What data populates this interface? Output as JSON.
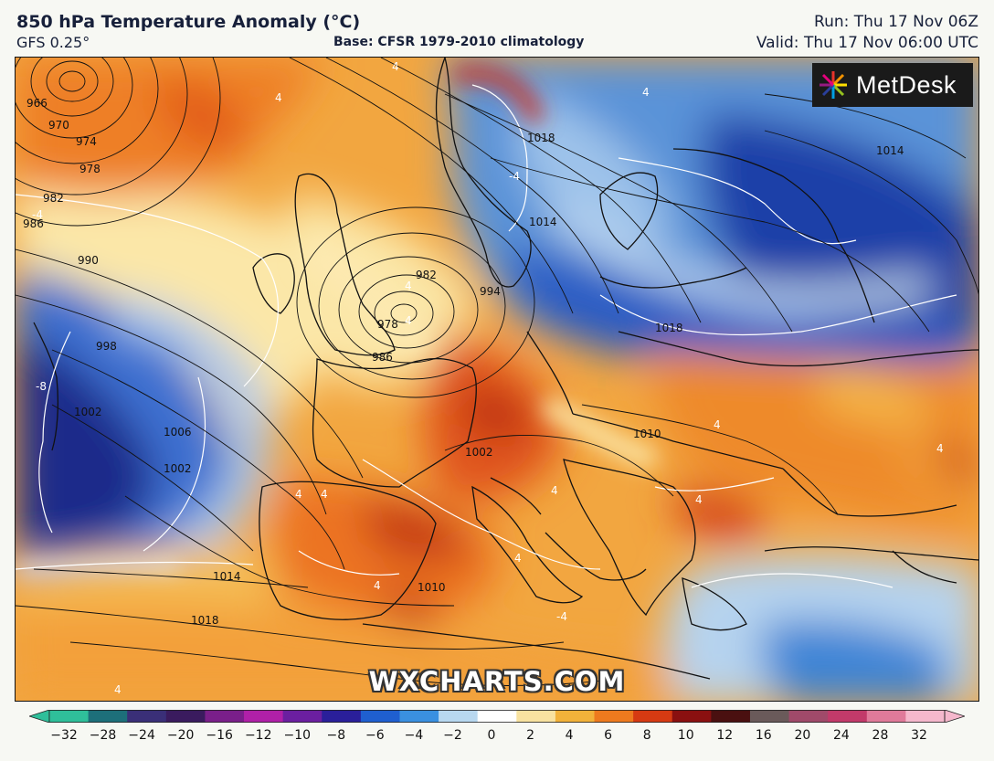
{
  "header": {
    "title": "850 hPa Temperature Anomaly (°C)",
    "model": "GFS 0.25°",
    "base": "Base: CFSR 1979-2010 climatology",
    "run": "Run: Thu 17 Nov 06Z",
    "valid": "Valid: Thu 17 Nov 06:00 UTC"
  },
  "branding": {
    "logo": "MetDesk",
    "watermark": "WXCHARTS.COM"
  },
  "colorbar": {
    "ticks": [
      "−32",
      "−28",
      "−24",
      "−20",
      "−16",
      "−12",
      "−10",
      "−8",
      "−6",
      "−4",
      "−2",
      "0",
      "2",
      "4",
      "6",
      "8",
      "10",
      "12",
      "16",
      "20",
      "24",
      "28",
      "32"
    ],
    "colors": [
      "#2fbf9a",
      "#1d6f7a",
      "#3a2f78",
      "#3a1b5e",
      "#7a1f8a",
      "#b020a8",
      "#6b1fa0",
      "#2a1f9a",
      "#1f5fd0",
      "#3a90e0",
      "#b8d8f0",
      "#ffffff",
      "#f8e2a0",
      "#f2b23a",
      "#ee7a1e",
      "#d63a12",
      "#8a1010",
      "#4a1010",
      "#6a5a5a",
      "#a04a6a",
      "#c23a6a",
      "#e07a9a",
      "#f5b8cc"
    ]
  },
  "isobars": [
    "966",
    "970",
    "974",
    "978",
    "982",
    "986",
    "990",
    "998",
    "1002",
    "1006",
    "1010",
    "1014",
    "1018",
    "982",
    "986",
    "994",
    "1002",
    "1018",
    "1014",
    "978",
    "1014",
    "1018",
    "1010",
    "1002"
  ],
  "anomaly_labels": [
    "4",
    "4",
    "4",
    "-4",
    "-4",
    "-8",
    "4",
    "4",
    "4",
    "4",
    "4",
    "4",
    "4",
    "4",
    "4",
    "4",
    "-4",
    "4"
  ]
}
